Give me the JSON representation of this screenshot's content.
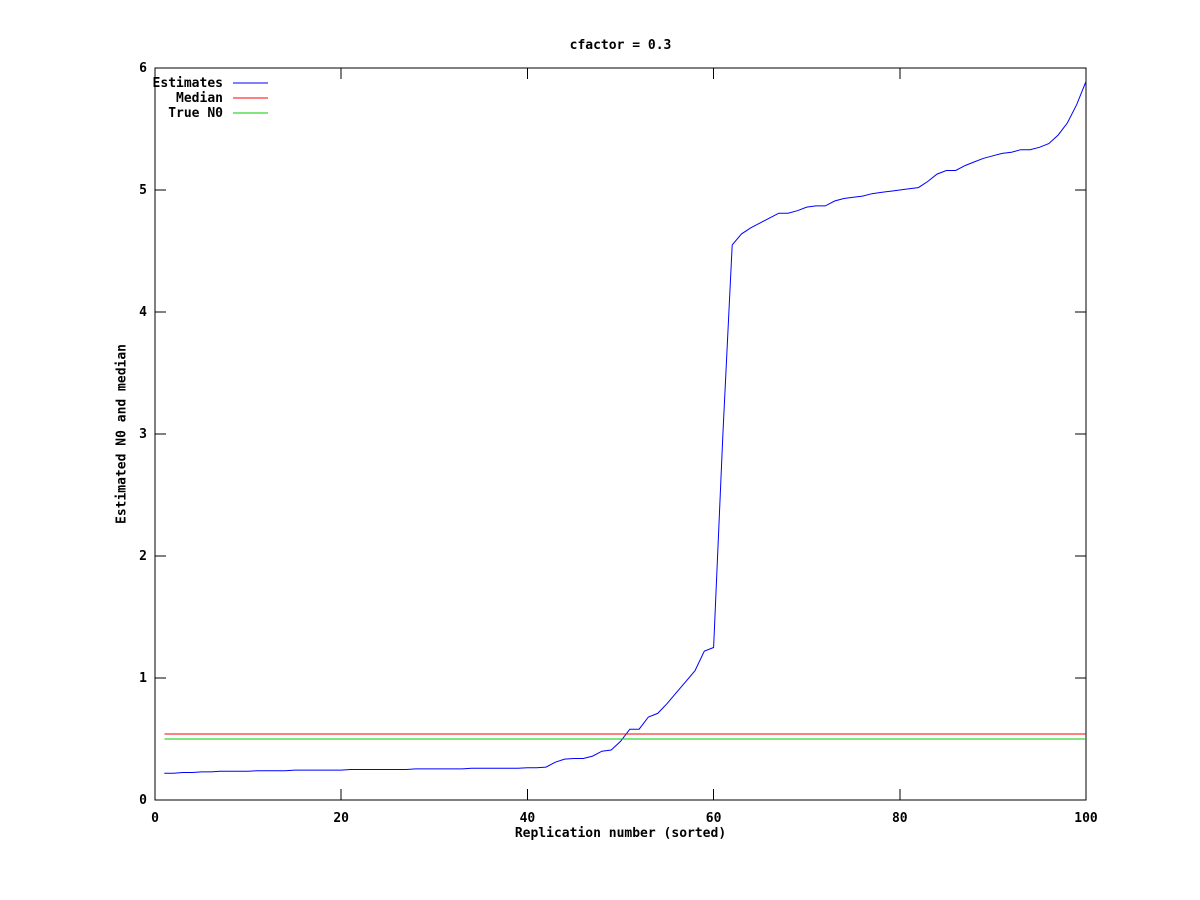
{
  "window": {
    "background": "#ffffff"
  },
  "chart_data": {
    "type": "line",
    "title": "cfactor = 0.3",
    "xlabel": "Replication number (sorted)",
    "ylabel": "Estimated N0 and median",
    "xlim": [
      0,
      100
    ],
    "ylim": [
      0,
      6
    ],
    "xticks": [
      0,
      20,
      40,
      60,
      80,
      100
    ],
    "yticks": [
      0,
      1,
      2,
      3,
      4,
      5,
      6
    ],
    "grid": false,
    "axis_color": "#000000",
    "legend_position": "top-left",
    "series": [
      {
        "name": "Estimates",
        "color": "#0000ff",
        "x_start": 1,
        "y": [
          0.22,
          0.22,
          0.225,
          0.225,
          0.23,
          0.23,
          0.235,
          0.235,
          0.235,
          0.235,
          0.24,
          0.24,
          0.24,
          0.24,
          0.245,
          0.245,
          0.245,
          0.245,
          0.245,
          0.245,
          0.25,
          0.25,
          0.25,
          0.25,
          0.25,
          0.25,
          0.25,
          0.255,
          0.255,
          0.255,
          0.255,
          0.255,
          0.255,
          0.26,
          0.26,
          0.26,
          0.26,
          0.26,
          0.26,
          0.265,
          0.265,
          0.27,
          0.31,
          0.335,
          0.34,
          0.34,
          0.36,
          0.4,
          0.41,
          0.48,
          0.58,
          0.58,
          0.68,
          0.71,
          0.79,
          0.88,
          0.97,
          1.06,
          1.22,
          1.25,
          3.0,
          4.55,
          4.64,
          4.69,
          4.73,
          4.77,
          4.81,
          4.81,
          4.83,
          4.86,
          4.87,
          4.87,
          4.91,
          4.93,
          4.94,
          4.95,
          4.97,
          4.98,
          4.99,
          5.0,
          5.01,
          5.02,
          5.07,
          5.13,
          5.16,
          5.16,
          5.2,
          5.23,
          5.26,
          5.28,
          5.3,
          5.31,
          5.33,
          5.33,
          5.35,
          5.38,
          5.45,
          5.55,
          5.7,
          5.89
        ]
      },
      {
        "name": "Median",
        "color": "#ff0000",
        "const": 0.54,
        "x_range": [
          1,
          100
        ]
      },
      {
        "name": "True N0",
        "color": "#00cc00",
        "const": 0.5,
        "x_range": [
          1,
          100
        ]
      }
    ]
  }
}
